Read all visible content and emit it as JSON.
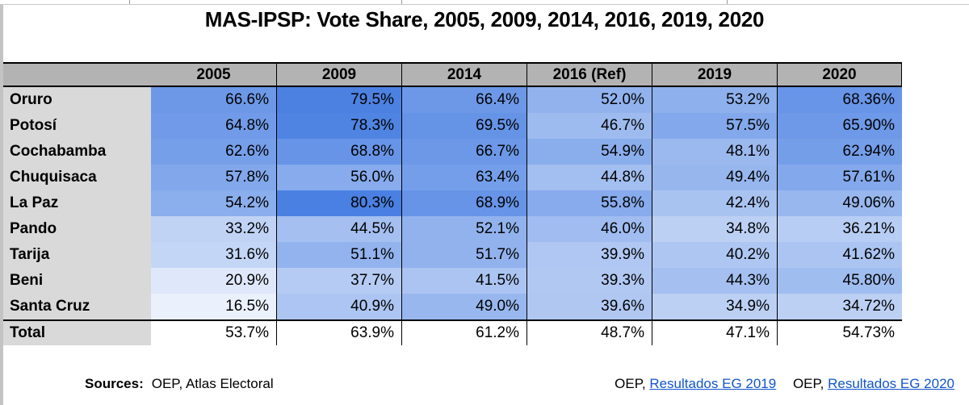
{
  "title": "MAS-IPSP: Vote Share, 2005, 2009, 2014, 2016, 2019, 2020",
  "table": {
    "columns": [
      "",
      "2005",
      "2009",
      "2014",
      "2016 (Ref)",
      "2019",
      "2020"
    ],
    "rows": [
      {
        "label": "Oruro",
        "values": [
          "66.6%",
          "79.5%",
          "66.4%",
          "52.0%",
          "53.2%",
          "68.36%"
        ]
      },
      {
        "label": "Potosí",
        "values": [
          "64.8%",
          "78.3%",
          "69.5%",
          "46.7%",
          "57.5%",
          "65.90%"
        ]
      },
      {
        "label": "Cochabamba",
        "values": [
          "62.6%",
          "68.8%",
          "66.7%",
          "54.9%",
          "48.1%",
          "62.94%"
        ]
      },
      {
        "label": "Chuquisaca",
        "values": [
          "57.8%",
          "56.0%",
          "63.4%",
          "44.8%",
          "49.4%",
          "57.61%"
        ]
      },
      {
        "label": "La Paz",
        "values": [
          "54.2%",
          "80.3%",
          "68.9%",
          "55.8%",
          "42.4%",
          "49.06%"
        ]
      },
      {
        "label": "Pando",
        "values": [
          "33.2%",
          "44.5%",
          "52.1%",
          "46.0%",
          "34.8%",
          "36.21%"
        ]
      },
      {
        "label": "Tarija",
        "values": [
          "31.6%",
          "51.1%",
          "51.7%",
          "39.9%",
          "40.2%",
          "41.62%"
        ]
      },
      {
        "label": "Beni",
        "values": [
          "20.9%",
          "37.7%",
          "41.5%",
          "39.3%",
          "44.3%",
          "45.80%"
        ]
      },
      {
        "label": "Santa Cruz",
        "values": [
          "16.5%",
          "40.9%",
          "49.0%",
          "39.6%",
          "34.9%",
          "34.72%"
        ]
      }
    ],
    "total_row": {
      "label": "Total",
      "values": [
        "53.7%",
        "63.9%",
        "61.2%",
        "48.7%",
        "47.1%",
        "54.73%"
      ]
    },
    "colors": {
      "header_bg": "#b3b3b3",
      "label_bg": "#d9d9d9",
      "total_bg": "#ffffff",
      "border": "#000000"
    },
    "heatmap": {
      "min_value": 8,
      "max_value": 80.3,
      "min_color": "#ffffff",
      "max_color": "#4a80e2"
    }
  },
  "footer": {
    "sources_label": "Sources:",
    "sources_text": "OEP, Atlas Electoral",
    "citation_prefix_1": "OEP, ",
    "citation_link_1": "Resultados EG 2019",
    "citation_prefix_2": "OEP, ",
    "citation_link_2": "Resultados EG 2020",
    "link_color": "#1155cc"
  },
  "chart_data": {
    "type": "table",
    "title": "MAS-IPSP: Vote Share, 2005, 2009, 2014, 2016, 2019, 2020",
    "categories": [
      "2005",
      "2009",
      "2014",
      "2016 (Ref)",
      "2019",
      "2020"
    ],
    "series": [
      {
        "name": "Oruro",
        "values": [
          66.6,
          79.5,
          66.4,
          52.0,
          53.2,
          68.36
        ]
      },
      {
        "name": "Potosí",
        "values": [
          64.8,
          78.3,
          69.5,
          46.7,
          57.5,
          65.9
        ]
      },
      {
        "name": "Cochabamba",
        "values": [
          62.6,
          68.8,
          66.7,
          54.9,
          48.1,
          62.94
        ]
      },
      {
        "name": "Chuquisaca",
        "values": [
          57.8,
          56.0,
          63.4,
          44.8,
          49.4,
          57.61
        ]
      },
      {
        "name": "La Paz",
        "values": [
          54.2,
          80.3,
          68.9,
          55.8,
          42.4,
          49.06
        ]
      },
      {
        "name": "Pando",
        "values": [
          33.2,
          44.5,
          52.1,
          46.0,
          34.8,
          36.21
        ]
      },
      {
        "name": "Tarija",
        "values": [
          31.6,
          51.1,
          51.7,
          39.9,
          40.2,
          41.62
        ]
      },
      {
        "name": "Beni",
        "values": [
          20.9,
          37.7,
          41.5,
          39.3,
          44.3,
          45.8
        ]
      },
      {
        "name": "Santa Cruz",
        "values": [
          16.5,
          40.9,
          49.0,
          39.6,
          34.9,
          34.72
        ]
      },
      {
        "name": "Total",
        "values": [
          53.7,
          63.9,
          61.2,
          48.7,
          47.1,
          54.73
        ]
      }
    ],
    "value_unit": "%",
    "legend_position": "none",
    "cell_shading": "white-to-blue heatmap proportional to vote share"
  }
}
